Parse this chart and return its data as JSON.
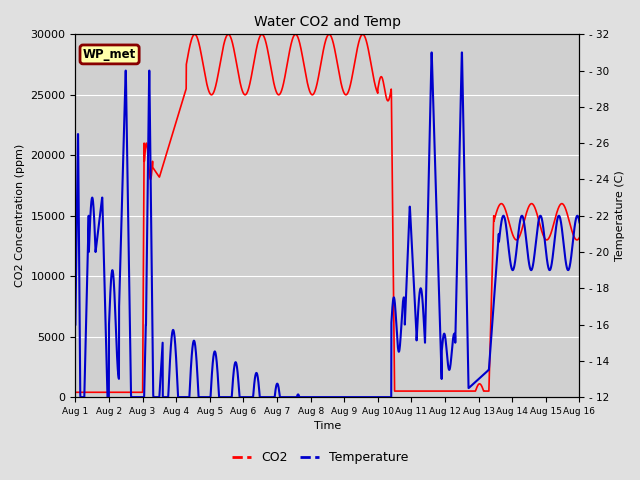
{
  "title": "Water CO2 and Temp",
  "xlabel": "Time",
  "ylabel_left": "CO2 Concentration (ppm)",
  "ylabel_right": "Temperature (C)",
  "annotation": "WP_met",
  "co2_color": "#ff0000",
  "temp_color": "#0000cc",
  "co2_linewidth": 1.2,
  "temp_linewidth": 1.5,
  "ylim_co2": [
    0,
    30000
  ],
  "ylim_temp": [
    12,
    32
  ],
  "yticks_co2": [
    0,
    5000,
    10000,
    15000,
    20000,
    25000,
    30000
  ],
  "yticks_temp": [
    12,
    14,
    16,
    18,
    20,
    22,
    24,
    26,
    28,
    30,
    32
  ],
  "xtick_labels": [
    "Aug 1",
    "Aug 2",
    "Aug 3",
    "Aug 4",
    "Aug 5",
    "Aug 6",
    "Aug 7",
    "Aug 8",
    "Aug 9",
    "Aug 10",
    "Aug 11",
    "Aug 12",
    "Aug 13",
    "Aug 14",
    "Aug 15",
    "Aug 16"
  ],
  "bg_color": "#e0e0e0",
  "plot_bg_color": "#d0d0d0",
  "legend_co2": "CO2",
  "legend_temp": "Temperature",
  "fig_width": 6.4,
  "fig_height": 4.8,
  "dpi": 100
}
